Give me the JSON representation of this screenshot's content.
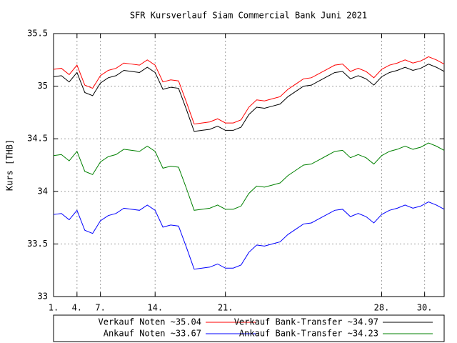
{
  "chart_data": {
    "type": "line",
    "title": "SFR Kursverlauf Siam Commercial Bank Juni 2021",
    "y_label": "Kurs [THB]",
    "x": [
      0,
      2,
      4,
      6,
      8,
      10,
      12,
      14,
      16,
      18,
      20,
      22,
      24,
      26,
      28,
      30,
      32,
      34,
      36,
      38,
      40,
      42,
      44,
      46,
      48,
      50,
      52,
      54,
      56,
      58,
      60,
      62,
      64,
      66,
      68,
      70,
      72,
      74,
      76,
      78,
      80,
      82,
      84,
      86,
      88,
      90,
      92,
      94,
      96,
      98,
      100
    ],
    "xlim": [
      0,
      100
    ],
    "xticks": [
      {
        "value": 0,
        "label": "1."
      },
      {
        "value": 6,
        "label": "4."
      },
      {
        "value": 12,
        "label": "7."
      },
      {
        "value": 26,
        "label": "14."
      },
      {
        "value": 44,
        "label": "21."
      },
      {
        "value": 84,
        "label": "28."
      },
      {
        "value": 95,
        "label": "30."
      }
    ],
    "ylim": [
      33,
      35.5
    ],
    "yticks": [
      33,
      33.5,
      34,
      34.5,
      35,
      35.5
    ],
    "grid": true,
    "legend": "bottom",
    "series": [
      {
        "name": "Verkauf Noten ~35.04",
        "color": "#ff0000",
        "values": [
          35.16,
          35.17,
          35.11,
          35.2,
          35.01,
          34.98,
          35.1,
          35.15,
          35.17,
          35.22,
          35.21,
          35.2,
          35.25,
          35.2,
          35.04,
          35.06,
          35.05,
          34.85,
          34.64,
          34.65,
          34.66,
          34.69,
          34.65,
          34.65,
          34.68,
          34.8,
          34.87,
          34.86,
          34.88,
          34.9,
          34.97,
          35.02,
          35.07,
          35.08,
          35.12,
          35.16,
          35.2,
          35.21,
          35.14,
          35.17,
          35.14,
          35.08,
          35.16,
          35.2,
          35.22,
          35.25,
          35.22,
          35.24,
          35.28,
          35.25,
          35.21
        ]
      },
      {
        "name": "Verkauf Bank-Transfer ~34.97",
        "color": "#000000",
        "values": [
          35.09,
          35.1,
          35.04,
          35.13,
          34.94,
          34.91,
          35.03,
          35.08,
          35.1,
          35.15,
          35.14,
          35.13,
          35.18,
          35.13,
          34.97,
          34.99,
          34.98,
          34.78,
          34.57,
          34.58,
          34.59,
          34.62,
          34.58,
          34.58,
          34.61,
          34.73,
          34.8,
          34.79,
          34.81,
          34.83,
          34.9,
          34.95,
          35.0,
          35.01,
          35.05,
          35.09,
          35.13,
          35.14,
          35.07,
          35.1,
          35.07,
          35.01,
          35.09,
          35.13,
          35.15,
          35.18,
          35.15,
          35.17,
          35.21,
          35.18,
          35.14
        ]
      },
      {
        "name": "Ankauf Noten ~33.67",
        "color": "#0000ff",
        "values": [
          33.78,
          33.79,
          33.73,
          33.82,
          33.63,
          33.6,
          33.72,
          33.77,
          33.79,
          33.84,
          33.83,
          33.82,
          33.87,
          33.82,
          33.66,
          33.68,
          33.67,
          33.47,
          33.26,
          33.27,
          33.28,
          33.31,
          33.27,
          33.27,
          33.3,
          33.42,
          33.49,
          33.48,
          33.5,
          33.52,
          33.59,
          33.64,
          33.69,
          33.7,
          33.74,
          33.78,
          33.82,
          33.83,
          33.76,
          33.79,
          33.76,
          33.7,
          33.78,
          33.82,
          33.84,
          33.87,
          33.84,
          33.86,
          33.9,
          33.87,
          33.83
        ]
      },
      {
        "name": "Ankauf Bank-Transfer ~34.23",
        "color": "#008000",
        "values": [
          34.34,
          34.35,
          34.29,
          34.38,
          34.19,
          34.16,
          34.28,
          34.33,
          34.35,
          34.4,
          34.39,
          34.38,
          34.43,
          34.38,
          34.22,
          34.24,
          34.23,
          34.03,
          33.82,
          33.83,
          33.84,
          33.87,
          33.83,
          33.83,
          33.86,
          33.98,
          34.05,
          34.04,
          34.06,
          34.08,
          34.15,
          34.2,
          34.25,
          34.26,
          34.3,
          34.34,
          34.38,
          34.39,
          34.32,
          34.35,
          34.32,
          34.26,
          34.34,
          34.38,
          34.4,
          34.43,
          34.4,
          34.42,
          34.46,
          34.43,
          34.39
        ]
      }
    ]
  }
}
